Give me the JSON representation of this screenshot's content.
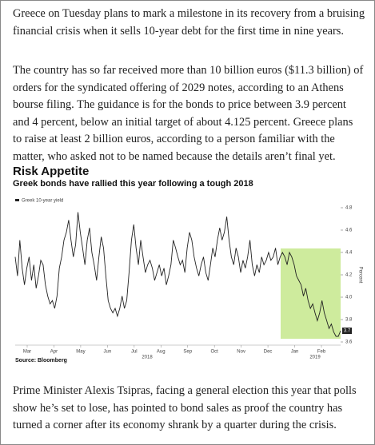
{
  "paragraphs": [
    "Greece on Tuesday plans to mark a milestone in its recovery from a bruising financial crisis when it sells 10-year debt for the first time in nine years.",
    "The country has so far received more than 10 billion euros ($11.3 billion) of orders for the syndicated offering of 2029 notes, according to an Athens bourse filing. The guidance is for the bonds to price between 3.9 percent and 4 percent, below an initial target of about 4.125 percent. Greece plans to raise at least 2 billion euros, according to a person familiar with the matter, who asked not to be named because the details aren’t final yet.",
    "Prime Minister Alexis Tsipras, facing a general election this year that polls show he’s set to lose, has pointed to bond sales as proof the country has turned a corner after its economy shrank by a quarter during the crisis."
  ],
  "chart_data": {
    "type": "line",
    "title": "Risk Appetite",
    "subtitle": "Greek bonds have rallied this year following a tough 2018",
    "y_label": "Percent",
    "source": "Source: Bloomberg",
    "xticks": [
      "Mar",
      "Apr",
      "May",
      "Jun",
      "Jul",
      "Aug",
      "Sep",
      "Oct",
      "Nov",
      "Dec",
      "Jan",
      "Feb"
    ],
    "year_labels": [
      "2018",
      "2019"
    ],
    "ylim": [
      3.6,
      4.8
    ],
    "yticks": [
      3.6,
      3.8,
      {
        "value": 4,
        "label": "4.0"
      },
      4.2,
      4.4,
      4.6,
      4.8
    ],
    "series": [
      {
        "name": "Greek 10-year yield",
        "color": "#222222",
        "values": [
          4.36,
          4.19,
          4.51,
          4.26,
          4.11,
          4.26,
          4.36,
          4.15,
          4.29,
          4.08,
          4.19,
          4.33,
          4.29,
          4.11,
          4.01,
          3.94,
          3.97,
          3.9,
          4.01,
          4.26,
          4.36,
          4.51,
          4.58,
          4.69,
          4.51,
          4.36,
          4.47,
          4.76,
          4.58,
          4.44,
          4.29,
          4.51,
          4.62,
          4.4,
          4.29,
          4.15,
          4.36,
          4.54,
          4.44,
          4.19,
          3.97,
          3.9,
          3.86,
          3.9,
          3.83,
          3.9,
          4.01,
          3.9,
          3.97,
          4.22,
          4.51,
          4.65,
          4.44,
          4.29,
          4.51,
          4.36,
          4.22,
          4.29,
          4.33,
          4.26,
          4.15,
          4.22,
          4.29,
          4.19,
          4.26,
          4.11,
          4.19,
          4.29,
          4.51,
          4.44,
          4.36,
          4.29,
          4.33,
          4.22,
          4.44,
          4.58,
          4.51,
          4.36,
          4.26,
          4.19,
          4.29,
          4.36,
          4.22,
          4.15,
          4.29,
          4.44,
          4.36,
          4.51,
          4.62,
          4.51,
          4.58,
          4.72,
          4.51,
          4.36,
          4.29,
          4.44,
          4.36,
          4.22,
          4.33,
          4.26,
          4.36,
          4.51,
          4.29,
          4.19,
          4.29,
          4.22,
          4.36,
          4.29,
          4.33,
          4.4,
          4.33,
          4.36,
          4.44,
          4.29,
          4.36,
          4.4,
          4.36,
          4.29,
          4.4,
          4.36,
          4.29,
          4.19,
          4.15,
          4.11,
          4.01,
          4.08,
          3.97,
          3.9,
          3.94,
          3.86,
          3.79,
          3.86,
          3.97,
          3.86,
          3.79,
          3.72,
          3.76,
          3.69,
          3.65,
          3.65,
          3.7
        ]
      }
    ]
  }
}
